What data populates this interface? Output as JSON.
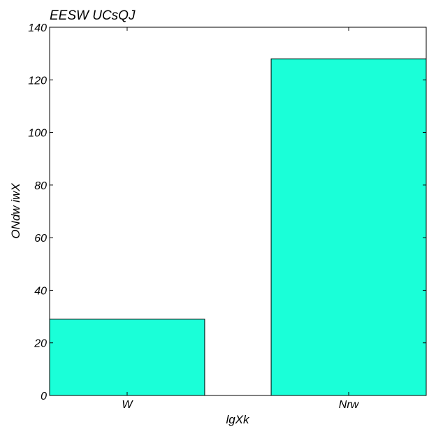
{
  "chart_data": {
    "type": "bar",
    "title": "EESW UCsQJ",
    "xlabel": "lgXk",
    "ylabel": "ONdw iwX",
    "categories": [
      "W",
      "Nrw"
    ],
    "values": [
      29,
      128
    ],
    "ylim": [
      0,
      140
    ],
    "yticks": [
      0,
      20,
      40,
      60,
      80,
      100,
      120,
      140
    ],
    "bar_color": "#1affd8",
    "edge_color": "#000000",
    "grid": false,
    "legend": "none"
  }
}
